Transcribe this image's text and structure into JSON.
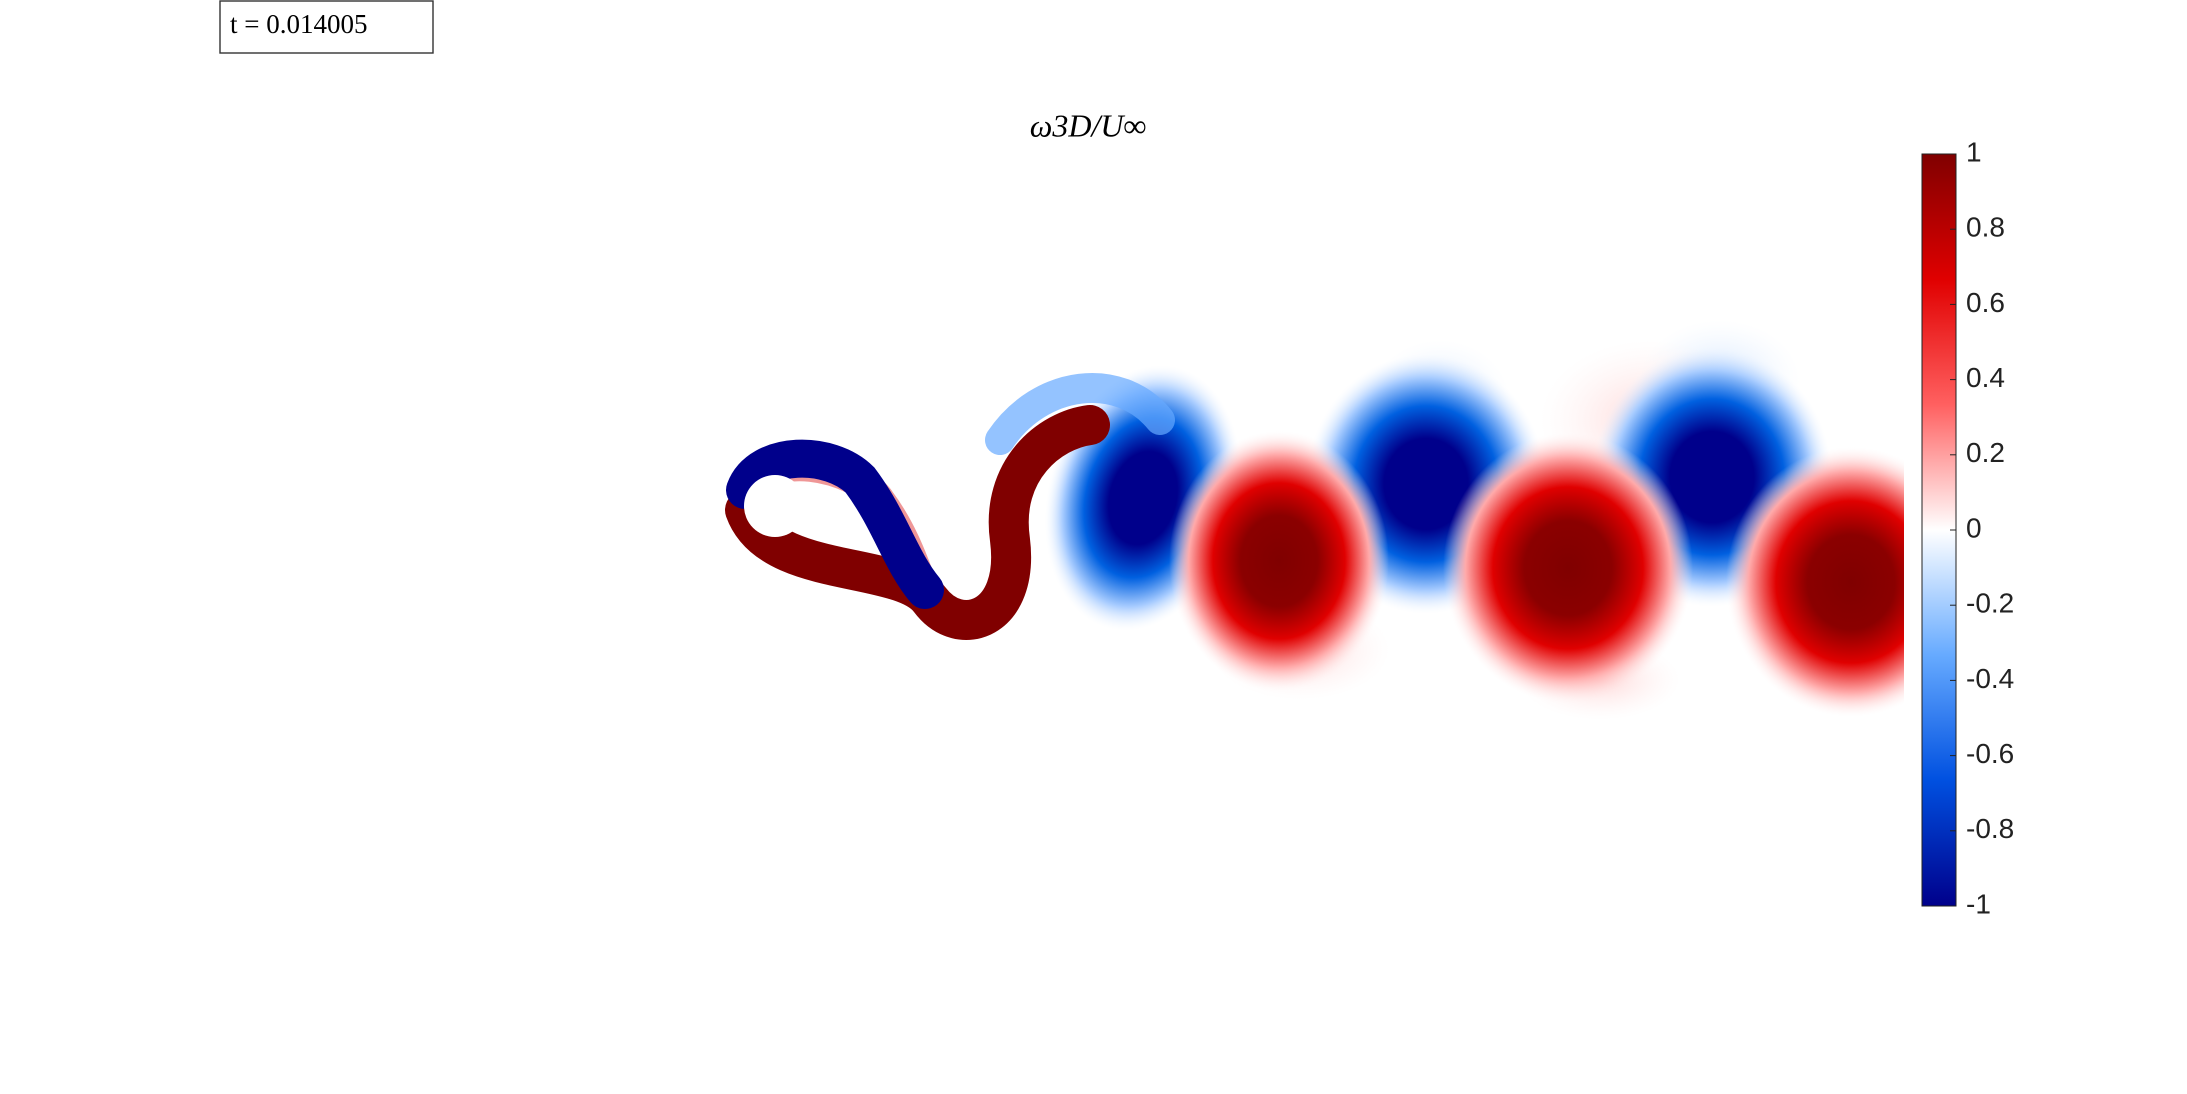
{
  "chart_data": {
    "type": "contour",
    "title": "ω3D/U∞",
    "annotation": "t = 0.014005",
    "clim": [
      -1,
      1
    ],
    "colorbar_ticks": [
      1,
      0.8,
      0.6,
      0.4,
      0.2,
      0,
      -0.2,
      -0.4,
      -0.6,
      -0.8,
      -1
    ],
    "colormap": [
      "#00008b",
      "#0050e0",
      "#66aaff",
      "#ffffff",
      "#ff6060",
      "#e00000",
      "#800000"
    ]
  }
}
